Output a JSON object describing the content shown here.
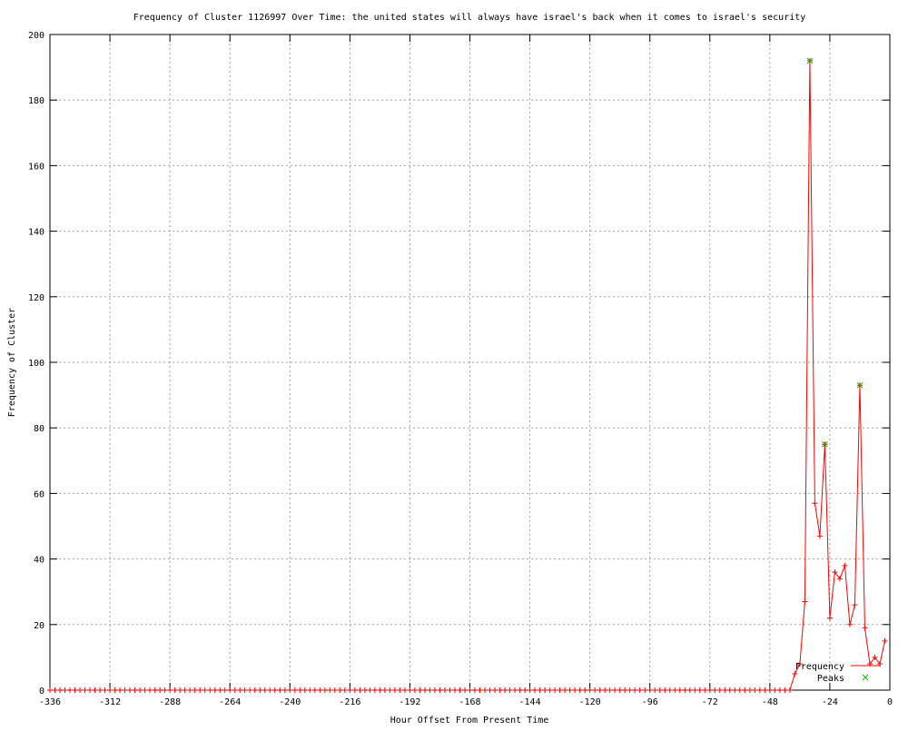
{
  "chart_data": {
    "type": "line",
    "title": "Frequency of Cluster 1126997 Over Time: the united states will always have israel's back when it comes to israel's security",
    "xlabel": "Hour Offset From Present Time",
    "ylabel": "Frequency of Cluster",
    "xlim": [
      -336,
      0
    ],
    "ylim": [
      0,
      200
    ],
    "xticks": [
      -336,
      -312,
      -288,
      -264,
      -240,
      -216,
      -192,
      -168,
      -144,
      -120,
      -96,
      -72,
      -48,
      -24,
      0
    ],
    "yticks": [
      0,
      20,
      40,
      60,
      80,
      100,
      120,
      140,
      160,
      180,
      200
    ],
    "grid": true,
    "legend_position": "bottom-right",
    "series": [
      {
        "name": "Frequency",
        "color": "#ff0000",
        "marker": "plus",
        "zero_range": [
          -336,
          -40,
          2
        ],
        "x": [
          -38,
          -36,
          -34,
          -32,
          -30,
          -28,
          -26,
          -24,
          -22,
          -20,
          -18,
          -16,
          -14,
          -12,
          -10,
          -8,
          -6,
          -4,
          -2
        ],
        "y": [
          5,
          8,
          27,
          192,
          57,
          47,
          75,
          22,
          36,
          34,
          38,
          20,
          26,
          93,
          19,
          8,
          10,
          8,
          15
        ]
      },
      {
        "name": "Peaks",
        "color": "#00c000",
        "marker": "x",
        "x": [
          -32,
          -26,
          -12
        ],
        "y": [
          192,
          75,
          93
        ]
      }
    ]
  }
}
